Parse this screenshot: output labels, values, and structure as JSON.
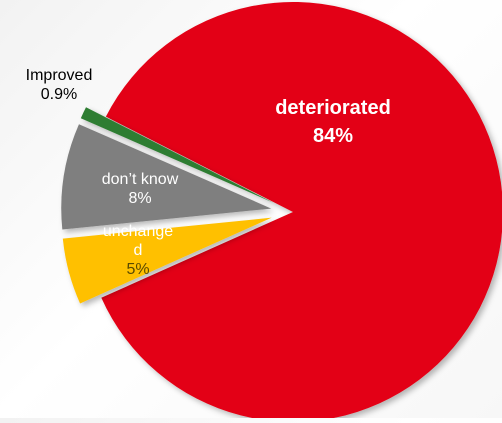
{
  "chart_data": {
    "type": "pie",
    "slices": [
      {
        "label": "deteriorated",
        "value": 84,
        "display": "84%",
        "color": "#e30613"
      },
      {
        "label": "unchanged",
        "display_lines": [
          "unchange",
          "d"
        ],
        "value": 5,
        "display": "5%",
        "color": "#ffc000"
      },
      {
        "label": "don’t know",
        "value": 8,
        "display": "8%",
        "color": "#7f7f7f"
      },
      {
        "label": "Improved",
        "value": 0.9,
        "display": "0.9%",
        "color": "#2e7d32"
      }
    ],
    "legend": "none"
  }
}
